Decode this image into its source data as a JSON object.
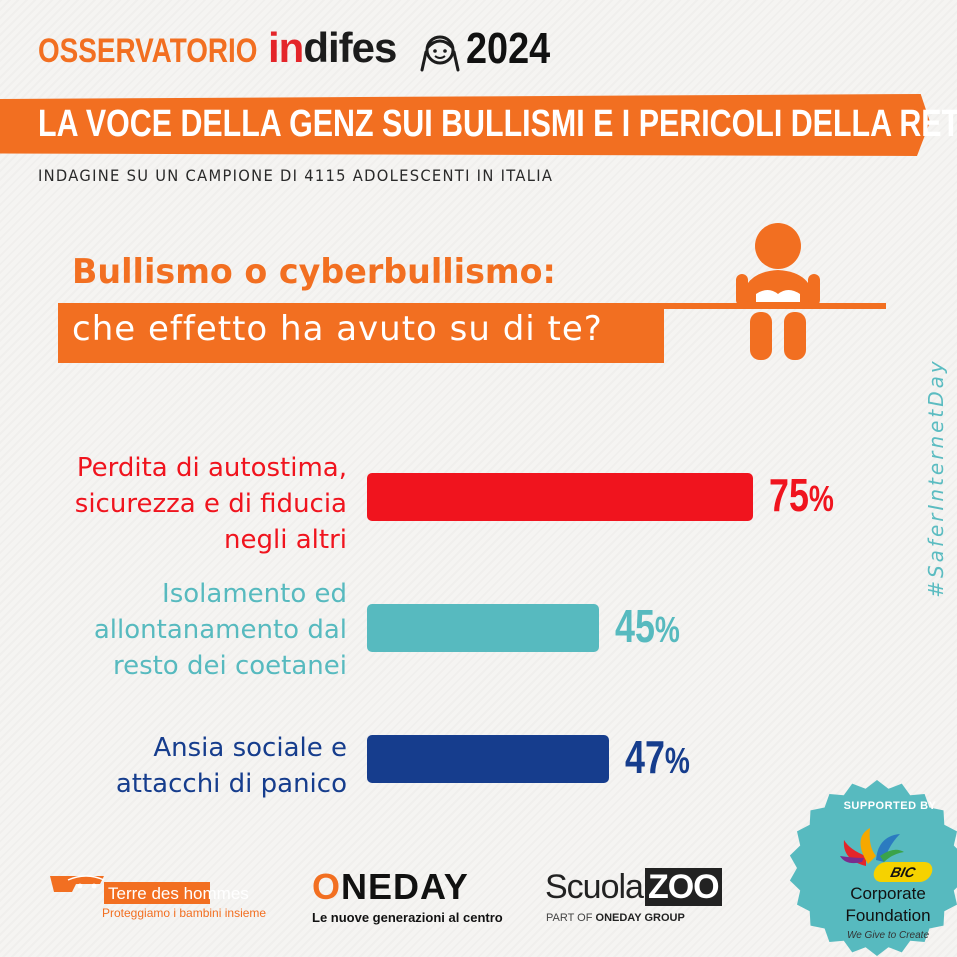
{
  "header": {
    "osservatorio": "OSSERVATORIO",
    "brand_in": "in",
    "brand_difes": "difes",
    "year": "2024",
    "banner": "LA VOCE DELLA GENZ SUI BULLISMI E I PERICOLI DELLA RETE",
    "subtitle": "INDAGINE SU UN CAMPIONE DI 4115 ADOLESCENTI IN ITALIA"
  },
  "question": {
    "line1": "Bullismo o cyberbullismo:",
    "line2": "che effetto ha avuto su di te?"
  },
  "hashtag": "#SaferInternetDay",
  "colors": {
    "orange": "#f26f21",
    "red": "#f0141e",
    "teal": "#57babf",
    "navy": "#163d8d"
  },
  "chart_data": {
    "type": "bar",
    "orientation": "horizontal",
    "categories": [
      "Perdita di autostima, sicurezza e di fiducia negli altri",
      "Isolamento ed allontanamento dal resto dei coetanei",
      "Ansia sociale e attacchi di panico"
    ],
    "category_lines": [
      [
        "Perdita di autostima,",
        "sicurezza e di fiducia",
        "negli altri"
      ],
      [
        "Isolamento ed",
        "allontanamento dal",
        "resto dei coetanei"
      ],
      [
        "Ansia sociale e",
        "attacchi di panico"
      ]
    ],
    "values": [
      75,
      45,
      47
    ],
    "value_labels": [
      "75",
      "45",
      "47"
    ],
    "unit": "%",
    "bar_colors": [
      "#f0141e",
      "#57babf",
      "#163d8d"
    ],
    "title": "",
    "xlabel": "",
    "ylabel": "",
    "xlim": [
      0,
      100
    ],
    "grid": false,
    "legend": "none"
  },
  "footer": {
    "tdh_name": "Terre des hommes",
    "tdh_tag": "Proteggiamo i bambini insieme",
    "oneday_o": "O",
    "oneday_rest": "NEDAY",
    "oneday_tag": "Le nuove generazioni al centro",
    "scuola": "Scuola",
    "zoo": "ZOO",
    "szoo_part": "PART OF",
    "szoo_group": "ONEDAY GROUP",
    "supported_by": "SUPPORTED BY",
    "bic": "BIC",
    "bic_line1": "Corporate",
    "bic_line2": "Foundation",
    "bic_tag": "We Give to Create"
  }
}
